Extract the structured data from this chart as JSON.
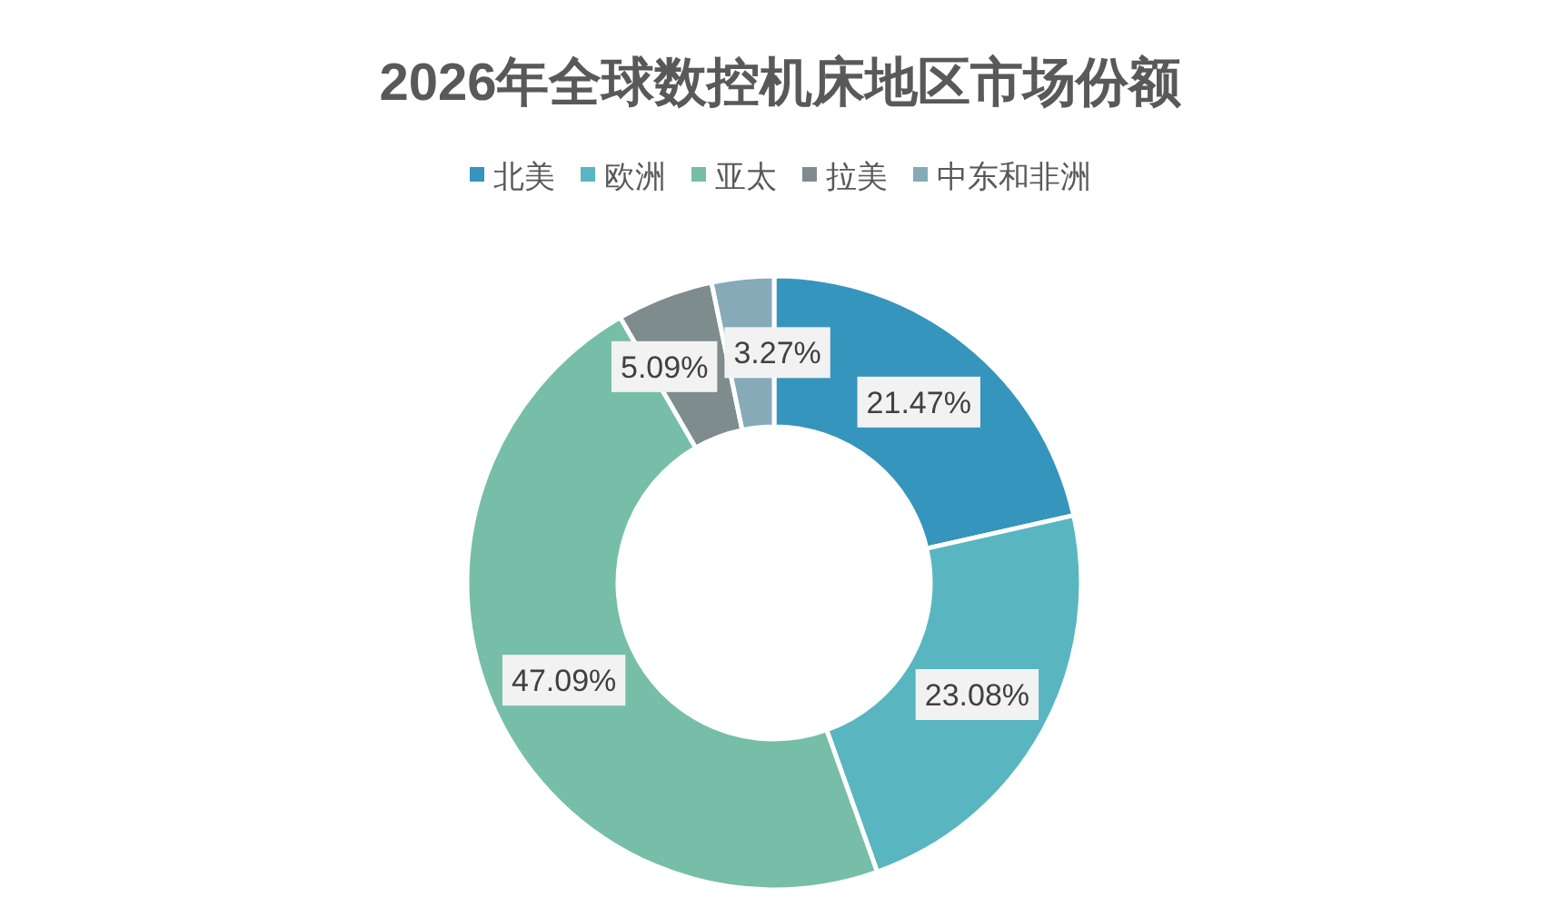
{
  "chart_data": {
    "type": "donut",
    "title": "2026年全球数控机床地区市场份额",
    "categories": [
      "北美",
      "欧洲",
      "亚太",
      "拉美",
      "中东和非洲"
    ],
    "values": [
      21.47,
      23.08,
      47.09,
      5.09,
      3.27
    ],
    "colors": [
      "#3595bc",
      "#59b6c1",
      "#76bea8",
      "#7f8c8d",
      "#86aab8"
    ],
    "value_labels": [
      "21.47%",
      "23.08%",
      "47.09%",
      "5.09%",
      "3.27%"
    ],
    "legend": "top"
  }
}
